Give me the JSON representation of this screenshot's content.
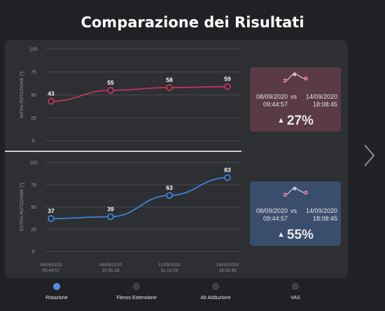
{
  "title": "Comparazione dei Risultati",
  "colors": {
    "intra": "#c2335a",
    "extra": "#3d82d8",
    "card_red": "#5a3a44",
    "card_blue": "#3b4d6d",
    "accent": "#4a8de8"
  },
  "chart_data": [
    {
      "type": "line",
      "ylabel": "INTRA ROTAZIONE [°]",
      "ylim": [
        0,
        100
      ],
      "yticks": [
        0,
        25,
        50,
        75,
        100
      ],
      "x": [
        "08/09/2020 09:44:57",
        "08/09/2020 10:36:18",
        "11/09/2020 11:14:20",
        "14/09/2020 18:08:45"
      ],
      "values": [
        43,
        55,
        58,
        59
      ],
      "data_labels": [
        "43",
        "55",
        "58",
        "59"
      ],
      "color": "#c2335a",
      "grid": true
    },
    {
      "type": "line",
      "ylabel": "EXTRA ROTAZIONE [°]",
      "ylim": [
        0,
        100
      ],
      "yticks": [
        0,
        25,
        50,
        75,
        100
      ],
      "x": [
        "08/09/2020 09:44:57",
        "08/09/2020 10:36:18",
        "11/09/2020 11:14:20",
        "14/09/2020 18:08:45"
      ],
      "x_tick_lines": [
        [
          "08/09/2020",
          "09:44:57"
        ],
        [
          "08/09/2020",
          "10:36:18"
        ],
        [
          "11/09/2020",
          "11:14:20"
        ],
        [
          "14/09/2020",
          "18:08:45"
        ]
      ],
      "values": [
        37,
        39,
        63,
        83
      ],
      "data_labels": [
        "37",
        "39",
        "63",
        "83"
      ],
      "color": "#3d82d8",
      "grid": true
    }
  ],
  "cards": [
    {
      "date_from": "08/09/2020",
      "time_from": "09:44:57",
      "vs": "vs",
      "date_to": "14/09/2020",
      "time_to": "18:08:45",
      "change": "27%",
      "icon": "trend-line-icon"
    },
    {
      "date_from": "08/09/2020",
      "time_from": "09:44:57",
      "vs": "vs",
      "date_to": "14/09/2020",
      "time_to": "18:08:45",
      "change": "55%",
      "icon": "trend-line-icon"
    }
  ],
  "tabs": [
    {
      "label": "Rotazione",
      "active": true
    },
    {
      "label": "Flesso Estensione",
      "active": false
    },
    {
      "label": "Ab Adduzione",
      "active": false
    },
    {
      "label": "VAS",
      "active": false
    }
  ]
}
